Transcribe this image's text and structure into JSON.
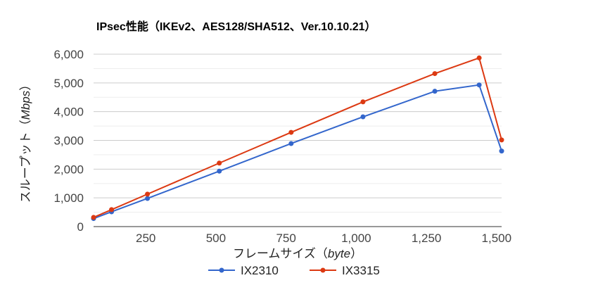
{
  "chart_data": {
    "type": "line",
    "title": "IPsec性能（IKEv2、AES128/SHA512、Ver.10.10.21）",
    "xlabel_main": "フレームサイズ（",
    "xlabel_unit": "byte",
    "xlabel_end": "）",
    "ylabel_main": "スループット（",
    "ylabel_unit": "Mbps",
    "ylabel_end": "）",
    "x": [
      64,
      128,
      256,
      512,
      768,
      1024,
      1280,
      1438,
      1518
    ],
    "xlim": [
      64,
      1518
    ],
    "ylim": [
      0,
      6000
    ],
    "x_ticks": [
      250,
      500,
      750,
      1000,
      1250,
      1500
    ],
    "x_tick_labels": [
      "250",
      "500",
      "750",
      "1,000",
      "1,250",
      "1,500"
    ],
    "y_ticks": [
      0,
      1000,
      2000,
      3000,
      4000,
      5000,
      6000
    ],
    "y_tick_labels": [
      "0",
      "1,000",
      "2,000",
      "3,000",
      "4,000",
      "5,000",
      "6,000"
    ],
    "grid": true,
    "legend_position": "bottom",
    "series": [
      {
        "name": "IX2310",
        "color": "#3366cc",
        "values": [
          280,
          515,
          980,
          1930,
          2890,
          3820,
          4710,
          4930,
          2630
        ]
      },
      {
        "name": "IX3315",
        "color": "#dc3912",
        "values": [
          320,
          590,
          1130,
          2210,
          3280,
          4340,
          5325,
          5870,
          3015
        ]
      }
    ]
  }
}
